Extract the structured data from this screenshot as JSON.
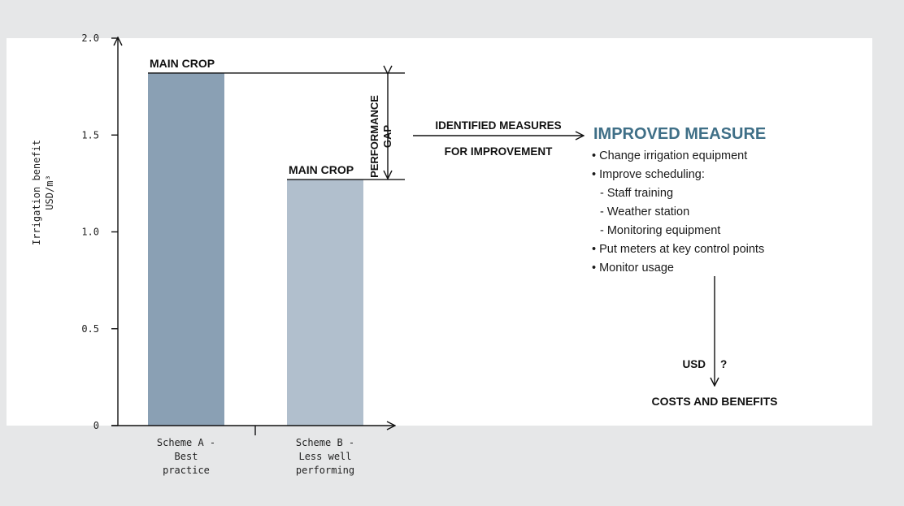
{
  "chart_data": {
    "type": "bar",
    "ylabel": [
      "Irrigation benefit",
      "USD/m³"
    ],
    "ylim": [
      0,
      2.0
    ],
    "yticks": [
      "2.0",
      "1.5",
      "1.0",
      "0.5",
      "0"
    ],
    "categories": [
      {
        "lines": [
          "Scheme A -",
          "Best",
          "practice"
        ]
      },
      {
        "lines": [
          "Scheme B -",
          "Less well",
          "performing"
        ]
      }
    ],
    "values": [
      1.82,
      1.27
    ],
    "bar_labels": [
      "MAIN CROP",
      "MAIN CROP"
    ],
    "colors": {
      "bar_a": "#8aa0b4",
      "bar_b": "#b1bfcd",
      "accent": "#3f6f87",
      "frame": "#e6e7e8",
      "axis": "#111111"
    },
    "gap_label": [
      "PERFORMANCE",
      "GAP"
    ],
    "measures_label": [
      "IDENTIFIED MEASURES",
      "FOR IMPROVEMENT"
    ],
    "improved": {
      "title": "IMPROVED MEASURE",
      "items": [
        "• Change irrigation equipment",
        "• Improve scheduling:",
        "  - Staff training",
        "  - Weather station",
        "  - Monitoring equipment",
        "• Put meters at key control points",
        "• Monitor usage"
      ]
    },
    "usd_label": "USD",
    "question_mark": "?",
    "costs_label": "COSTS AND BENEFITS"
  }
}
